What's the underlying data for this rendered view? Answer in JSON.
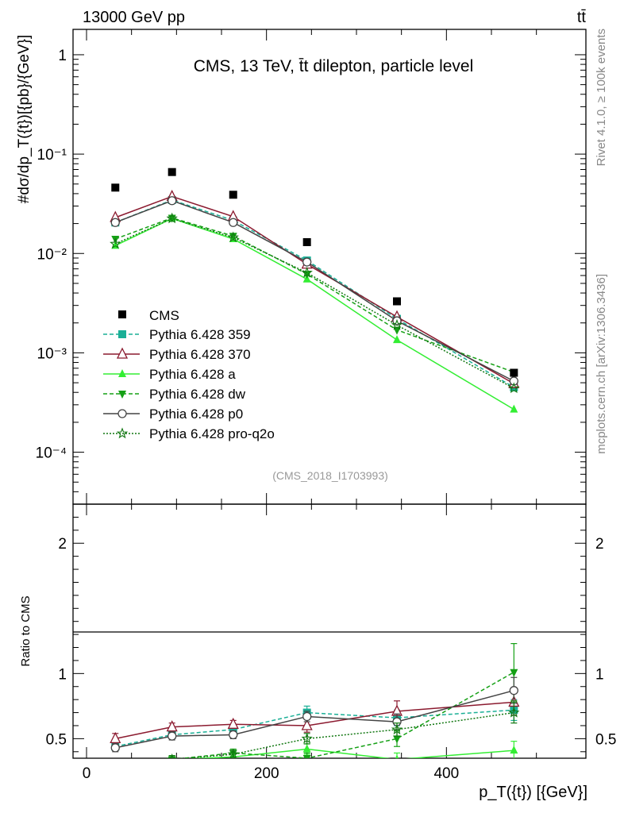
{
  "header": {
    "left_label": "13000 GeV pp",
    "right_label": "tt̄",
    "title": "CMS, 13 TeV, t̄t dilepton, particle level",
    "watermark": "(CMS_2018_I1703993)"
  },
  "side": {
    "rivet": "Rivet 4.1.0, ≥ 100k events",
    "mcplots": "mcplots.cern.ch [arXiv:1306.3436]"
  },
  "axes": {
    "ylabel_main": "#dσ/dp_T({t})[{pb}/{GeV}]",
    "ylabel_ratio": "Ratio to CMS",
    "xlabel": "p_T({t}) [{GeV}]"
  },
  "chart_data": {
    "type": "line",
    "x": [
      32,
      95,
      163,
      245,
      345,
      475
    ],
    "xlim": [
      -15,
      555
    ],
    "ylim_main": [
      3e-05,
      1.8
    ],
    "ylim_ratio": [
      0.35,
      2.3
    ],
    "yscale_main": "log",
    "x_ticks": [
      "0",
      "200",
      "400"
    ],
    "y_ticks_main": [
      "1",
      "10⁻¹",
      "10⁻²",
      "10⁻³",
      "10⁻⁴"
    ],
    "y_ticks_ratio": [
      "0.5",
      "1",
      "2"
    ],
    "data": {
      "name": "CMS",
      "values": [
        0.046,
        0.066,
        0.039,
        0.013,
        0.0033,
        0.00063
      ]
    },
    "series": [
      {
        "name": "Pythia 6.428 359",
        "color": "#1aaf96",
        "dash": "5,3",
        "marker": "square",
        "values": [
          0.0205,
          0.0345,
          0.0215,
          0.0085,
          0.0022,
          0.00045
        ],
        "ratio": [
          0.44,
          0.53,
          0.57,
          0.7,
          0.66,
          0.72
        ],
        "ratio_err": [
          0.03,
          0.03,
          0.03,
          0.05,
          0.06,
          0.08
        ]
      },
      {
        "name": "Pythia 6.428 370",
        "color": "#8b1a2f",
        "dash": "",
        "marker": "triangle-open",
        "values": [
          0.023,
          0.0375,
          0.0235,
          0.0078,
          0.0023,
          0.00049
        ],
        "ratio": [
          0.5,
          0.59,
          0.61,
          0.6,
          0.71,
          0.78
        ],
        "ratio_err": [
          0.04,
          0.03,
          0.03,
          0.05,
          0.08,
          0.1
        ]
      },
      {
        "name": "Pythia 6.428 a",
        "color": "#33ee33",
        "dash": "",
        "marker": "triangle",
        "values": [
          0.012,
          0.0225,
          0.014,
          0.0055,
          0.00135,
          0.00027
        ],
        "ratio": [
          0.26,
          0.34,
          0.36,
          0.42,
          0.34,
          0.41
        ],
        "ratio_err": [
          0.03,
          0.03,
          0.03,
          0.04,
          0.05,
          0.07
        ]
      },
      {
        "name": "Pythia 6.428 dw",
        "color": "#15a015",
        "dash": "5,3",
        "marker": "triangle-down",
        "values": [
          0.014,
          0.0228,
          0.015,
          0.0062,
          0.0017,
          0.00064
        ],
        "ratio": [
          0.3,
          0.34,
          0.39,
          0.35,
          0.5,
          1.01
        ],
        "ratio_err": [
          0.03,
          0.03,
          0.03,
          0.04,
          0.06,
          0.22
        ]
      },
      {
        "name": "Pythia 6.428 p0",
        "color": "#444444",
        "dash": "",
        "marker": "circle-open",
        "values": [
          0.0205,
          0.034,
          0.0205,
          0.0082,
          0.0021,
          0.00052
        ],
        "ratio": [
          0.43,
          0.52,
          0.53,
          0.67,
          0.63,
          0.87
        ],
        "ratio_err": [
          0.03,
          0.03,
          0.03,
          0.04,
          0.06,
          0.1
        ]
      },
      {
        "name": "Pythia 6.428 pro-q2o",
        "color": "#117711",
        "dash": "2,2",
        "marker": "star",
        "values": [
          0.0125,
          0.0225,
          0.0145,
          0.0064,
          0.0019,
          0.00044
        ],
        "ratio": [
          0.27,
          0.34,
          0.38,
          0.5,
          0.57,
          0.7
        ],
        "ratio_err": [
          0.03,
          0.03,
          0.03,
          0.04,
          0.05,
          0.08
        ]
      }
    ]
  }
}
